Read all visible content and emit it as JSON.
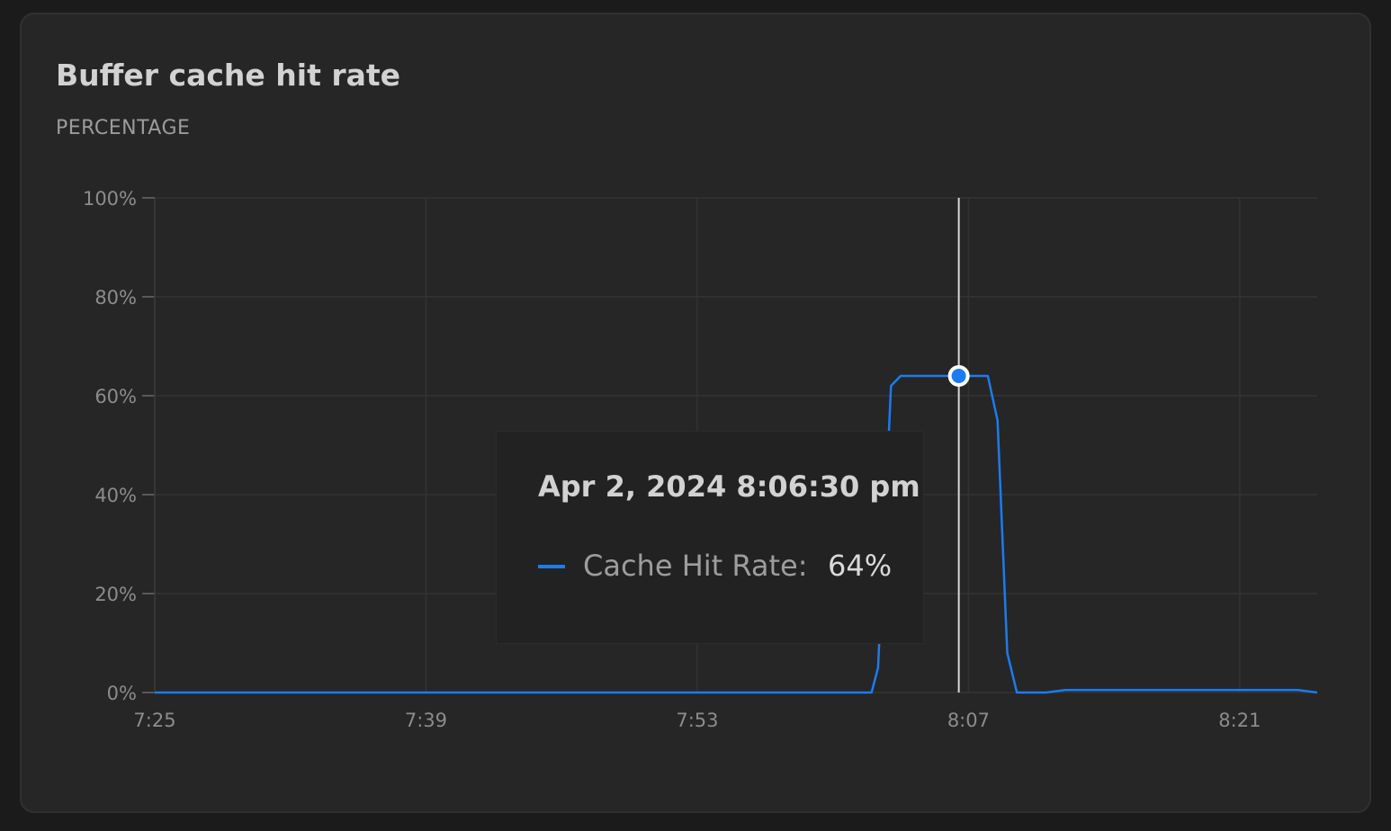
{
  "panel": {
    "title": "Buffer cache hit rate",
    "unit_label": "PERCENTAGE"
  },
  "colors": {
    "series": "#1a7cf0",
    "background": "#262626",
    "grid": "#333333"
  },
  "chart_data": {
    "type": "line",
    "title": "Buffer cache hit rate",
    "ylabel": "PERCENTAGE",
    "xlabel": "",
    "ylim": [
      0,
      100
    ],
    "yticks": [
      0,
      20,
      40,
      60,
      80,
      100
    ],
    "ytick_labels": [
      "0%",
      "20%",
      "40%",
      "60%",
      "80%",
      "100%"
    ],
    "x_range": [
      "7:25",
      "8:25"
    ],
    "xticks": [
      "7:25",
      "7:39",
      "7:53",
      "8:07",
      "8:21"
    ],
    "grid": true,
    "series": [
      {
        "name": "Cache Hit Rate",
        "x": [
          "7:25",
          "7:30",
          "7:40",
          "7:50",
          "8:00",
          "8:02",
          "8:02:20",
          "8:03",
          "8:03:30",
          "8:06:30",
          "8:08",
          "8:08:30",
          "8:09",
          "8:09:30",
          "8:10",
          "8:11",
          "8:12",
          "8:15",
          "8:20",
          "8:24",
          "8:25"
        ],
        "y": [
          0,
          0,
          0,
          0,
          0,
          0,
          5,
          62,
          64,
          64,
          64,
          55,
          8,
          0,
          0,
          0,
          0.5,
          0.5,
          0.5,
          0.5,
          0
        ]
      }
    ],
    "cursor": {
      "time": "Apr 2, 2024 8:06:30 pm",
      "series_name": "Cache Hit Rate",
      "value": "64%"
    }
  }
}
